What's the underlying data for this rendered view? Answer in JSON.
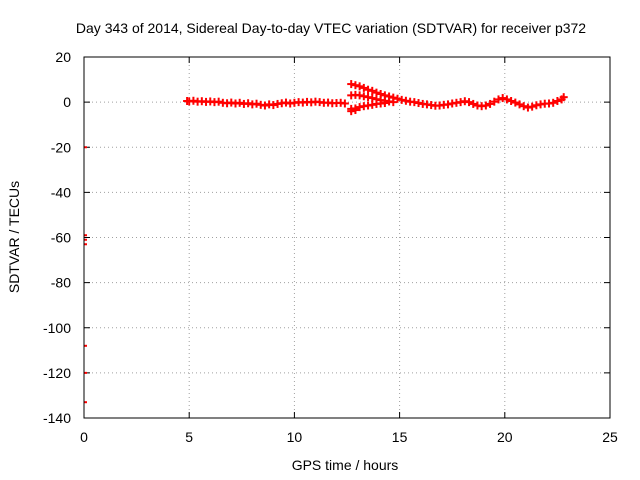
{
  "chart_data": {
    "type": "scatter",
    "title": "Day 343 of 2014, Sidereal Day-to-day VTEC variation (SDTVAR) for receiver p372",
    "xlabel": "GPS time / hours",
    "ylabel": "SDTVAR / TECUs",
    "xlim": [
      0,
      25
    ],
    "ylim": [
      -140,
      20
    ],
    "xticks": [
      0,
      5,
      10,
      15,
      20,
      25
    ],
    "yticks": [
      -140,
      -120,
      -100,
      -80,
      -60,
      -40,
      -20,
      0,
      20
    ],
    "grid": true,
    "series": [
      {
        "name": "SDTVAR",
        "color": "#ff0000",
        "marker": "plus",
        "points": [
          [
            0,
            -20
          ],
          [
            0,
            -59
          ],
          [
            0,
            -61
          ],
          [
            0,
            -63
          ],
          [
            0,
            -108
          ],
          [
            0,
            -120
          ],
          [
            0,
            -133
          ],
          [
            4.9,
            0.5
          ],
          [
            5.0,
            0.3
          ],
          [
            5.2,
            0.6
          ],
          [
            5.4,
            0.2
          ],
          [
            5.6,
            0.4
          ],
          [
            5.8,
            0.1
          ],
          [
            6.0,
            0.3
          ],
          [
            6.2,
            0.0
          ],
          [
            6.4,
            0.2
          ],
          [
            6.6,
            -0.3
          ],
          [
            6.8,
            -0.5
          ],
          [
            7.0,
            -0.2
          ],
          [
            7.2,
            -0.6
          ],
          [
            7.4,
            -0.3
          ],
          [
            7.6,
            -0.8
          ],
          [
            7.8,
            -0.5
          ],
          [
            8.0,
            -1.0
          ],
          [
            8.2,
            -0.7
          ],
          [
            8.4,
            -1.2
          ],
          [
            8.6,
            -1.5
          ],
          [
            8.8,
            -1.0
          ],
          [
            9.0,
            -1.3
          ],
          [
            9.2,
            -0.8
          ],
          [
            9.4,
            -0.5
          ],
          [
            9.6,
            -0.2
          ],
          [
            9.8,
            -0.6
          ],
          [
            10.0,
            -0.3
          ],
          [
            10.2,
            0.0
          ],
          [
            10.4,
            -0.2
          ],
          [
            10.6,
            0.1
          ],
          [
            10.8,
            -0.1
          ],
          [
            11.0,
            0.2
          ],
          [
            11.2,
            0.0
          ],
          [
            11.4,
            -0.3
          ],
          [
            11.6,
            -0.2
          ],
          [
            11.8,
            -0.5
          ],
          [
            12.0,
            -0.4
          ],
          [
            12.2,
            -0.3
          ],
          [
            12.4,
            -0.6
          ],
          [
            12.7,
            8.0
          ],
          [
            12.9,
            7.5
          ],
          [
            13.1,
            7.0
          ],
          [
            13.3,
            6.3
          ],
          [
            13.5,
            5.5
          ],
          [
            13.7,
            5.0
          ],
          [
            13.9,
            4.2
          ],
          [
            14.1,
            3.6
          ],
          [
            14.3,
            3.0
          ],
          [
            14.5,
            2.5
          ],
          [
            14.7,
            2.0
          ],
          [
            14.9,
            1.5
          ],
          [
            15.1,
            1.0
          ],
          [
            15.3,
            0.6
          ],
          [
            12.7,
            3.0
          ],
          [
            12.9,
            3.2
          ],
          [
            13.1,
            3.0
          ],
          [
            13.3,
            2.6
          ],
          [
            13.5,
            2.2
          ],
          [
            13.7,
            1.8
          ],
          [
            13.9,
            1.3
          ],
          [
            14.1,
            0.9
          ],
          [
            14.3,
            0.6
          ],
          [
            14.5,
            0.3
          ],
          [
            14.7,
            0.0
          ],
          [
            12.7,
            -3.0
          ],
          [
            12.9,
            -2.8
          ],
          [
            13.1,
            -2.2
          ],
          [
            13.3,
            -1.8
          ],
          [
            13.5,
            -1.5
          ],
          [
            13.7,
            -1.2
          ],
          [
            13.9,
            -0.8
          ],
          [
            14.1,
            -0.6
          ],
          [
            14.3,
            -0.4
          ],
          [
            12.7,
            -4.0
          ],
          [
            12.9,
            -3.5
          ],
          [
            15.5,
            0.2
          ],
          [
            15.7,
            0.0
          ],
          [
            15.9,
            -0.4
          ],
          [
            16.1,
            -0.8
          ],
          [
            16.3,
            -1.0
          ],
          [
            16.5,
            -1.3
          ],
          [
            16.7,
            -1.6
          ],
          [
            16.9,
            -1.5
          ],
          [
            17.1,
            -1.2
          ],
          [
            17.3,
            -1.0
          ],
          [
            17.5,
            -0.6
          ],
          [
            17.7,
            -0.3
          ],
          [
            17.9,
            0.0
          ],
          [
            18.1,
            0.4
          ],
          [
            18.3,
            0.0
          ],
          [
            18.5,
            -0.8
          ],
          [
            18.7,
            -1.5
          ],
          [
            18.9,
            -1.8
          ],
          [
            19.1,
            -1.5
          ],
          [
            19.3,
            -0.8
          ],
          [
            19.5,
            0.2
          ],
          [
            19.7,
            1.2
          ],
          [
            19.9,
            1.8
          ],
          [
            20.1,
            1.2
          ],
          [
            20.3,
            0.5
          ],
          [
            20.5,
            -0.2
          ],
          [
            20.7,
            -1.0
          ],
          [
            20.9,
            -1.8
          ],
          [
            21.1,
            -2.4
          ],
          [
            21.3,
            -2.0
          ],
          [
            21.5,
            -1.4
          ],
          [
            21.7,
            -1.0
          ],
          [
            21.9,
            -0.7
          ],
          [
            22.1,
            -0.6
          ],
          [
            22.3,
            -0.3
          ],
          [
            22.5,
            0.5
          ],
          [
            22.7,
            1.2
          ],
          [
            22.8,
            2.2
          ]
        ]
      }
    ]
  }
}
